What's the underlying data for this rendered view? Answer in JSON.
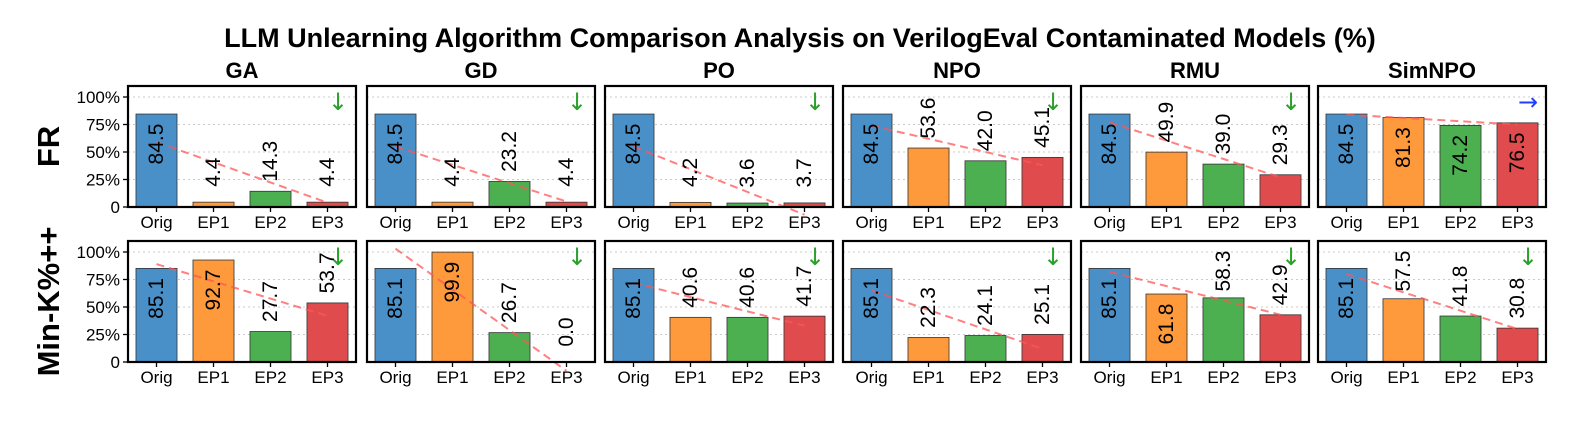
{
  "chart_data": {
    "type": "bar",
    "title": "LLM Unlearning Algorithm Comparison Analysis on VerilogEval Contaminated Models (%)",
    "categories": [
      "Orig",
      "EP1",
      "EP2",
      "EP3"
    ],
    "ylim": [
      0,
      110
    ],
    "yticks": [
      0,
      25,
      50,
      75,
      100
    ],
    "ytick_labels": [
      "0",
      "25%",
      "50%",
      "75%",
      "100%"
    ],
    "bar_colors": [
      "#4a90c8",
      "#ff9a3c",
      "#4caf50",
      "#e04b4d"
    ],
    "trend_color": "#ff5555",
    "columns": [
      "GA",
      "GD",
      "PO",
      "NPO",
      "RMU",
      "SimNPO"
    ],
    "rows": [
      {
        "name": "FR",
        "panels": [
          {
            "title": "GA",
            "values": [
              84.5,
              4.4,
              14.3,
              4.4
            ],
            "value_labels": [
              "84.5",
              "4.4",
              "14.3",
              "4.4"
            ],
            "trend_start": 59,
            "trend_end": 4,
            "arrow": "↓",
            "arrow_color": "#2ca02c"
          },
          {
            "title": "GD",
            "values": [
              84.5,
              4.4,
              23.2,
              4.4
            ],
            "value_labels": [
              "84.5",
              "4.4",
              "23.2",
              "4.4"
            ],
            "trend_start": 55,
            "trend_end": 5,
            "arrow": "↓",
            "arrow_color": "#2ca02c"
          },
          {
            "title": "PO",
            "values": [
              84.5,
              4.2,
              3.6,
              3.7
            ],
            "value_labels": [
              "84.5",
              "4.2",
              "3.6",
              "3.7"
            ],
            "trend_start": 55,
            "trend_end": -7,
            "arrow": "↓",
            "arrow_color": "#2ca02c"
          },
          {
            "title": "NPO",
            "values": [
              84.5,
              53.6,
              42.0,
              45.1
            ],
            "value_labels": [
              "84.5",
              "53.6",
              "42.0",
              "45.1"
            ],
            "trend_start": 74,
            "trend_end": 38,
            "arrow": "↓",
            "arrow_color": "#2ca02c"
          },
          {
            "title": "RMU",
            "values": [
              84.5,
              49.9,
              39.0,
              29.3
            ],
            "value_labels": [
              "84.5",
              "49.9",
              "39.0",
              "29.3"
            ],
            "trend_start": 77,
            "trend_end": 27,
            "arrow": "↓",
            "arrow_color": "#2ca02c"
          },
          {
            "title": "SimNPO",
            "values": [
              84.5,
              81.3,
              74.2,
              76.5
            ],
            "value_labels": [
              "84.5",
              "81.3",
              "74.2",
              "76.5"
            ],
            "trend_start": 84,
            "trend_end": 75,
            "arrow": "→",
            "arrow_color": "#1f3fff"
          }
        ]
      },
      {
        "name": "Min-K%++",
        "panels": [
          {
            "title": "GA",
            "values": [
              85.1,
              92.7,
              27.7,
              53.7
            ],
            "value_labels": [
              "85.1",
              "92.7",
              "27.7",
              "53.7"
            ],
            "trend_start": 89,
            "trend_end": 42,
            "arrow": "↓",
            "arrow_color": "#2ca02c"
          },
          {
            "title": "GD",
            "values": [
              85.1,
              99.9,
              26.7,
              0.0
            ],
            "value_labels": [
              "85.1",
              "99.9",
              "26.7",
              "0.0"
            ],
            "trend_start": 103,
            "trend_end": -8,
            "arrow": "↓",
            "arrow_color": "#2ca02c"
          },
          {
            "title": "PO",
            "values": [
              85.1,
              40.6,
              40.6,
              41.7
            ],
            "value_labels": [
              "85.1",
              "40.6",
              "40.6",
              "41.7"
            ],
            "trend_start": 72,
            "trend_end": 33,
            "arrow": "↓",
            "arrow_color": "#2ca02c"
          },
          {
            "title": "NPO",
            "values": [
              85.1,
              22.3,
              24.1,
              25.1
            ],
            "value_labels": [
              "85.1",
              "22.3",
              "24.1",
              "25.1"
            ],
            "trend_start": 65,
            "trend_end": 12,
            "arrow": "↓",
            "arrow_color": "#2ca02c"
          },
          {
            "title": "RMU",
            "values": [
              85.1,
              61.8,
              58.3,
              42.9
            ],
            "value_labels": [
              "85.1",
              "61.8",
              "58.3",
              "42.9"
            ],
            "trend_start": 82,
            "trend_end": 43,
            "arrow": "↓",
            "arrow_color": "#2ca02c"
          },
          {
            "title": "SimNPO",
            "values": [
              85.1,
              57.5,
              41.8,
              30.8
            ],
            "value_labels": [
              "85.1",
              "57.5",
              "41.8",
              "30.8"
            ],
            "trend_start": 80,
            "trend_end": 30,
            "arrow": "↓",
            "arrow_color": "#2ca02c"
          }
        ]
      }
    ]
  }
}
